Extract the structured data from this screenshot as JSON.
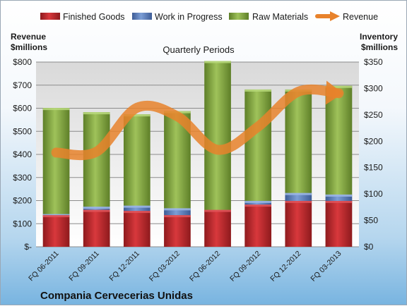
{
  "chart_data": {
    "type": "bar",
    "stacked": true,
    "company": "Compania Cervecerias Unidas",
    "subtitle": "Quarterly Periods",
    "left_axis_title": [
      "Revenue",
      "$millions"
    ],
    "right_axis_title": [
      "Inventory",
      "$millions"
    ],
    "categories": [
      "FQ 06-2011",
      "FQ 09-2011",
      "FQ 12-2011",
      "FQ 03-2012",
      "FQ 06-2012",
      "FQ 09-2012",
      "FQ 12-2012",
      "FQ 03-2013"
    ],
    "series": [
      {
        "name": "Finished Goods",
        "axis": "right",
        "color": "#c0282d",
        "values": [
          60,
          70,
          68,
          60,
          70,
          80,
          87,
          87
        ]
      },
      {
        "name": "Work in Progress",
        "axis": "right",
        "color": "#5a7fbf",
        "values": [
          2,
          6,
          10,
          13,
          0,
          7,
          15,
          12
        ]
      },
      {
        "name": "Raw Materials",
        "axis": "right",
        "color": "#8fb04a",
        "values": [
          201,
          179,
          173,
          184,
          282,
          211,
          196,
          206
        ]
      },
      {
        "name": "Revenue",
        "axis": "left",
        "type": "line",
        "color": "#e8822b",
        "values": [
          408,
          412,
          602,
          565,
          420,
          520,
          672,
          665
        ]
      }
    ],
    "left_axis": {
      "min": 0,
      "max": 800,
      "step": 100,
      "labels": [
        "$-",
        "$100",
        "$200",
        "$300",
        "$400",
        "$500",
        "$600",
        "$700",
        "$800"
      ]
    },
    "right_axis": {
      "min": 0,
      "max": 350,
      "step": 50,
      "labels": [
        "$0",
        "$50",
        "$100",
        "$150",
        "$200",
        "$250",
        "$300",
        "$350"
      ]
    },
    "grid": true,
    "legend_position": "top"
  }
}
